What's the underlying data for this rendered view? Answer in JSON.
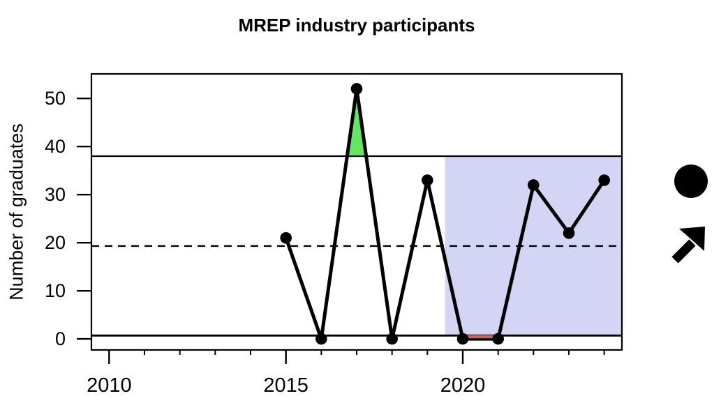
{
  "chart_data": {
    "type": "line",
    "title": "MREP industry participants",
    "xlabel": "",
    "ylabel": "Number of graduates",
    "x": [
      2015,
      2016,
      2017,
      2018,
      2019,
      2020,
      2021,
      2022,
      2023,
      2024
    ],
    "values": [
      21,
      0,
      52,
      0,
      33,
      0,
      0,
      32,
      22,
      33
    ],
    "xlim": [
      2009.5,
      2024.5
    ],
    "ylim": [
      -2.3,
      55.1
    ],
    "x_major_ticks": [
      2010,
      2015,
      2020
    ],
    "x_major_tick_labels": [
      "2010",
      "2015",
      "2020"
    ],
    "x_minor_ticks": [
      2010,
      2011,
      2012,
      2013,
      2014,
      2015,
      2016,
      2017,
      2018,
      2019,
      2020,
      2021,
      2022,
      2023,
      2024
    ],
    "y_ticks": [
      0,
      10,
      20,
      30,
      40,
      50
    ],
    "y_tick_labels": [
      "0",
      "10",
      "20",
      "30",
      "40",
      "50"
    ],
    "grid": false,
    "legend_position": "none",
    "line_color": "#000000",
    "point_color": "#000000",
    "reference_lines": {
      "upper_solid": 38,
      "mean_dashed": 19.3,
      "lower_solid": 0.7
    },
    "highlight_window": {
      "x1": 2019.5,
      "x2": 2024.5,
      "y1": 0.7,
      "y2": 38,
      "color": "#D4D4F4"
    },
    "above_upper_fill": {
      "threshold": 38,
      "color": "#63E763"
    },
    "below_lower_segment": {
      "x1": 2020,
      "x2": 2021,
      "y": 0.45,
      "color": "#C9655B"
    }
  },
  "side_annotations": {
    "status_dot_icon": {
      "shape": "filled-circle",
      "color": "#000000"
    },
    "trend_arrow_icon": {
      "shape": "northeast-arrow",
      "glyph": "↗",
      "color": "#000000"
    }
  }
}
